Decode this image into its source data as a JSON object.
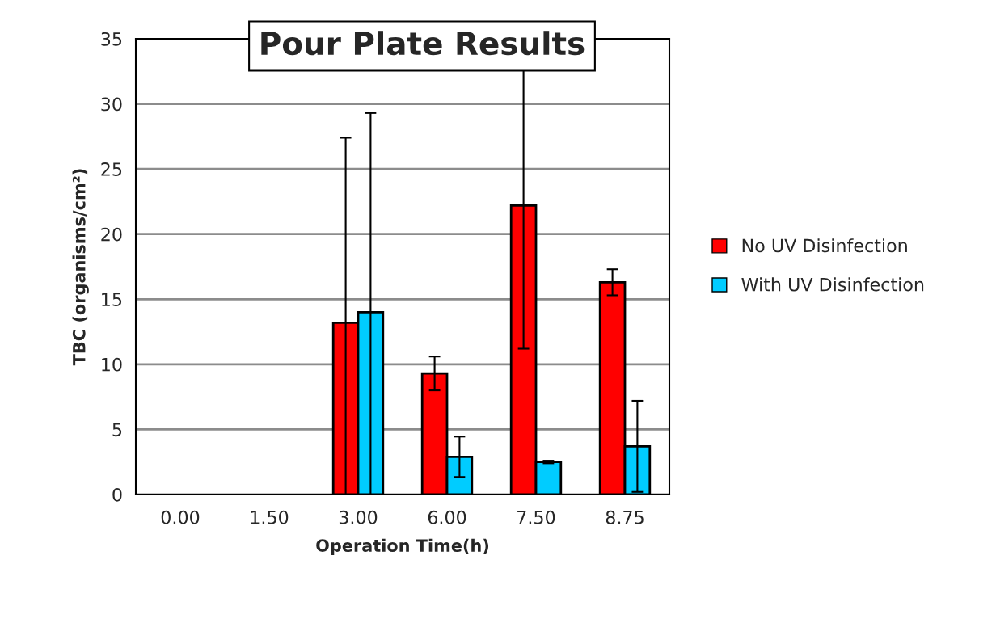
{
  "chart_data": {
    "type": "bar",
    "title": "Pour Plate Results",
    "xlabel": "Operation Time(h)",
    "ylabel": "TBC (organisms/cm²)",
    "categories": [
      "0.00",
      "1.50",
      "3.00",
      "6.00",
      "7.50",
      "8.75"
    ],
    "series": [
      {
        "name": "No UV Disinfection",
        "color": "#ff0000",
        "values": [
          null,
          null,
          13.2,
          9.3,
          22.2,
          16.3
        ],
        "errors": [
          null,
          null,
          14.2,
          1.3,
          11.0,
          1.0
        ]
      },
      {
        "name": "With UV Disinfection",
        "color": "#00ccff",
        "values": [
          null,
          null,
          14.0,
          2.9,
          2.5,
          3.7
        ],
        "errors": [
          null,
          null,
          15.3,
          1.55,
          0.1,
          3.5
        ]
      }
    ],
    "ylim": [
      0,
      35
    ],
    "yticks": [
      0,
      5,
      10,
      15,
      20,
      25,
      30,
      35
    ],
    "grid": "y",
    "legend": "right"
  }
}
